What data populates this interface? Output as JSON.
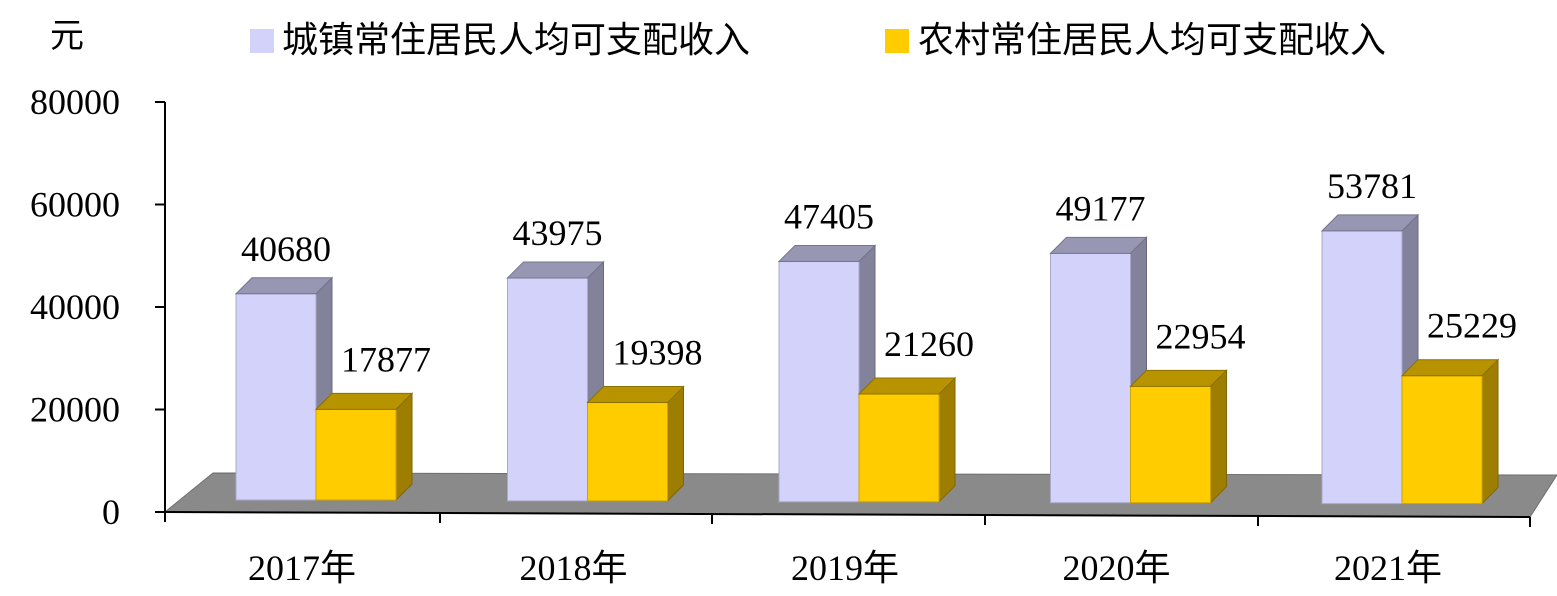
{
  "chart_data": {
    "type": "bar",
    "title": "",
    "ylabel": "元",
    "xlabel": "",
    "ylim": [
      0,
      80000
    ],
    "yticks": [
      0,
      20000,
      40000,
      60000,
      80000
    ],
    "categories": [
      "2017年",
      "2018年",
      "2019年",
      "2020年",
      "2021年"
    ],
    "series": [
      {
        "name": "城镇常住居民人均可支配收入",
        "values": [
          40680,
          43975,
          47405,
          49177,
          53781
        ],
        "color": "#d2d2fa"
      },
      {
        "name": "农村常住居民人均可支配收入",
        "values": [
          17877,
          19398,
          21260,
          22954,
          25229
        ],
        "color": "#ffcc00"
      }
    ],
    "legend_position": "top",
    "grid": false,
    "style": "3d-clustered"
  }
}
